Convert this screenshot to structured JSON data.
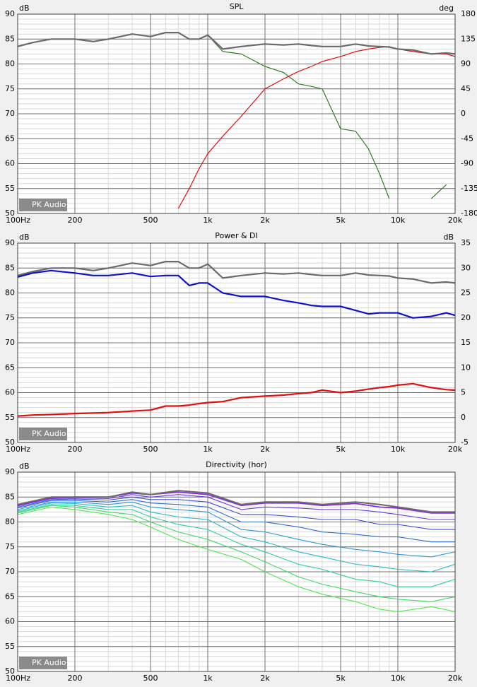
{
  "chart_data": [
    {
      "type": "line",
      "title": "SPL",
      "y_label": "dB",
      "y2_label": "deg",
      "watermark": "PK Audio",
      "xscale": "log",
      "grid": true,
      "xlim": [
        100,
        20000
      ],
      "ylim": [
        50,
        90
      ],
      "y2lim": [
        -180,
        180
      ],
      "xticks": [
        {
          "value": 100,
          "label": "100Hz"
        },
        200,
        500,
        {
          "value": 1000,
          "label": "1k"
        },
        {
          "value": 2000,
          "label": "2k"
        },
        {
          "value": 5000,
          "label": "5k"
        },
        {
          "value": 10000,
          "label": "10k"
        },
        {
          "value": 20000,
          "label": "20k"
        }
      ],
      "yticks": [
        90,
        85,
        80,
        75,
        70,
        65,
        60,
        55,
        50
      ],
      "y2ticks": [
        180,
        135,
        90,
        45,
        0,
        -45,
        -90,
        -135,
        -180
      ],
      "x": [
        100,
        120,
        150,
        200,
        250,
        300,
        400,
        500,
        600,
        700,
        800,
        900,
        1000,
        1200,
        1500,
        2000,
        2500,
        3000,
        3500,
        4000,
        5000,
        6000,
        7000,
        8000,
        9000,
        10000,
        12000,
        15000,
        18000,
        20000
      ],
      "series": [
        {
          "color": "#2e7d1e",
          "width": 1.2,
          "values": [
            83.5,
            84.3,
            85,
            85,
            84.5,
            85,
            86,
            85.5,
            86.3,
            86.3,
            85,
            85,
            85.8,
            82.5,
            82,
            79.5,
            78.3,
            76,
            75.5,
            75,
            67,
            66.5,
            63,
            58,
            53,
            null,
            null,
            53,
            55.8,
            null
          ]
        },
        {
          "color": "#e01010",
          "width": 1.2,
          "values": [
            null,
            null,
            null,
            null,
            null,
            null,
            null,
            null,
            null,
            51,
            55,
            59,
            62,
            65.5,
            69.5,
            75,
            77,
            78.5,
            79.5,
            80.5,
            81.5,
            82.5,
            83,
            83.3,
            83.5,
            83,
            82.5,
            82,
            82,
            81.5
          ]
        },
        {
          "color": "#6a6a6a",
          "width": 2.2,
          "values": [
            83.5,
            84.3,
            85,
            85,
            84.5,
            85,
            86,
            85.5,
            86.3,
            86.3,
            85,
            85,
            85.8,
            83,
            83.5,
            84,
            83.8,
            84,
            83.7,
            83.5,
            83.5,
            84,
            83.6,
            83.5,
            83.4,
            83,
            82.8,
            82,
            82.2,
            82
          ]
        }
      ]
    },
    {
      "type": "line",
      "title": "Power & DI",
      "y_label": "dB",
      "y2_label": "dB",
      "watermark": "PK Audio",
      "xscale": "log",
      "grid": true,
      "xlim": [
        100,
        20000
      ],
      "ylim": [
        50,
        90
      ],
      "y2lim": [
        -5,
        35
      ],
      "xticks": [
        {
          "value": 100,
          "label": "100Hz"
        },
        200,
        500,
        {
          "value": 1000,
          "label": "1k"
        },
        {
          "value": 2000,
          "label": "2k"
        },
        {
          "value": 5000,
          "label": "5k"
        },
        {
          "value": 10000,
          "label": "10k"
        },
        {
          "value": 20000,
          "label": "20k"
        }
      ],
      "yticks": [
        90,
        85,
        80,
        75,
        70,
        65,
        60,
        55,
        50
      ],
      "y2ticks": [
        35,
        30,
        25,
        20,
        15,
        10,
        5,
        0,
        -5
      ],
      "x": [
        100,
        120,
        150,
        200,
        250,
        300,
        400,
        500,
        600,
        700,
        800,
        900,
        1000,
        1200,
        1500,
        2000,
        2500,
        3000,
        3500,
        4000,
        5000,
        6000,
        7000,
        8000,
        9000,
        10000,
        12000,
        15000,
        18000,
        20000
      ],
      "series": [
        {
          "color": "#6a6a6a",
          "width": 2.2,
          "values": [
            83.5,
            84.3,
            85,
            85,
            84.5,
            85,
            86,
            85.5,
            86.3,
            86.3,
            85,
            85,
            85.8,
            83,
            83.5,
            84,
            83.8,
            84,
            83.7,
            83.5,
            83.5,
            84,
            83.6,
            83.5,
            83.4,
            83,
            82.8,
            82,
            82.2,
            82
          ]
        },
        {
          "color": "#1010d0",
          "width": 2.2,
          "values": [
            83.2,
            84,
            84.5,
            84,
            83.5,
            83.5,
            84,
            83.3,
            83.5,
            83.5,
            81.5,
            82,
            82,
            80,
            79.3,
            79.3,
            78.5,
            78,
            77.5,
            77.3,
            77.3,
            76.5,
            75.8,
            76,
            76,
            76,
            75,
            75.3,
            76,
            75.5
          ]
        },
        {
          "color": "#e01010",
          "width": 2.2,
          "axis": "y2",
          "values": [
            0.3,
            0.5,
            0.6,
            0.8,
            0.9,
            1,
            1.3,
            1.5,
            2.3,
            2.3,
            2.5,
            2.8,
            3,
            3.2,
            4,
            4.3,
            4.5,
            4.8,
            5,
            5.5,
            5,
            5.3,
            5.7,
            6,
            6.2,
            6.5,
            6.8,
            6,
            5.6,
            5.5
          ]
        }
      ]
    },
    {
      "type": "line",
      "title": "Directivity (hor)",
      "y_label": "dB",
      "watermark": "PK Audio",
      "xscale": "log",
      "grid": true,
      "xlim": [
        100,
        20000
      ],
      "ylim": [
        50,
        90
      ],
      "xticks": [
        {
          "value": 100,
          "label": "100Hz"
        },
        200,
        500,
        {
          "value": 1000,
          "label": "1k"
        },
        {
          "value": 2000,
          "label": "2k"
        },
        {
          "value": 5000,
          "label": "5k"
        },
        {
          "value": 10000,
          "label": "10k"
        },
        {
          "value": 20000,
          "label": "20k"
        }
      ],
      "yticks": [
        90,
        85,
        80,
        75,
        70,
        65,
        60,
        55,
        50
      ],
      "x": [
        100,
        150,
        200,
        300,
        400,
        500,
        700,
        1000,
        1500,
        2000,
        3000,
        4000,
        6000,
        8000,
        10000,
        15000,
        20000
      ],
      "series": [
        {
          "color": "#4ee84a",
          "width": 1.1,
          "values": [
            81.5,
            83,
            82.5,
            81.5,
            80.5,
            79,
            76.5,
            74.5,
            72.5,
            70,
            67,
            65.5,
            64,
            62.5,
            62,
            63,
            62
          ]
        },
        {
          "color": "#3ddb6a",
          "width": 1.1,
          "values": [
            81.8,
            83.3,
            83,
            82,
            81.5,
            80,
            78,
            76.5,
            74,
            72,
            69,
            67.5,
            66,
            65,
            64.5,
            64,
            65
          ]
        },
        {
          "color": "#2ccf9a",
          "width": 1.1,
          "values": [
            82,
            83.5,
            83.3,
            82.5,
            82.5,
            81,
            79.5,
            78.5,
            75.5,
            74,
            71.5,
            70.5,
            68.5,
            68,
            67,
            67,
            68.5
          ]
        },
        {
          "color": "#2bb8c8",
          "width": 1.1,
          "values": [
            82.2,
            83.8,
            83.7,
            83,
            83.3,
            82,
            81,
            80.5,
            77,
            76,
            74,
            73,
            71.5,
            71,
            70.5,
            70,
            71.5
          ]
        },
        {
          "color": "#2d9ad8",
          "width": 1.1,
          "values": [
            82.5,
            84,
            84,
            83.5,
            84,
            83,
            82.5,
            82,
            78.5,
            78,
            76.5,
            75.5,
            74.5,
            74,
            73.5,
            73,
            74
          ]
        },
        {
          "color": "#2e6fd0",
          "width": 1.1,
          "values": [
            82.8,
            84.3,
            84.3,
            84,
            84.5,
            83.8,
            83.5,
            83,
            80,
            80,
            79,
            78,
            77.5,
            77,
            77,
            76,
            76
          ]
        },
        {
          "color": "#3f4fd8",
          "width": 1.1,
          "values": [
            83,
            84.5,
            84.6,
            84.4,
            85,
            84.5,
            84.5,
            84,
            81.5,
            81.5,
            81,
            80.5,
            80.5,
            79.5,
            79.5,
            78.5,
            78.5
          ]
        },
        {
          "color": "#6a3de0",
          "width": 1.1,
          "values": [
            83.2,
            84.7,
            84.8,
            84.7,
            85.5,
            85,
            85.5,
            85,
            82.5,
            83,
            82.8,
            82.5,
            82.5,
            82,
            81.5,
            80.5,
            80.5
          ]
        },
        {
          "color": "#8a2be2",
          "width": 1.8,
          "values": [
            83.3,
            84.8,
            85,
            85,
            85.8,
            85.5,
            86,
            85.5,
            83.3,
            83.8,
            83.8,
            83.3,
            83.7,
            83,
            82.8,
            81.8,
            81.8
          ]
        },
        {
          "color": "#6a6a6a",
          "width": 2,
          "values": [
            83.5,
            85,
            85,
            85,
            86,
            85.5,
            86.3,
            85.8,
            83.5,
            84,
            84,
            83.5,
            84,
            83.5,
            83,
            82,
            82
          ]
        }
      ]
    }
  ]
}
